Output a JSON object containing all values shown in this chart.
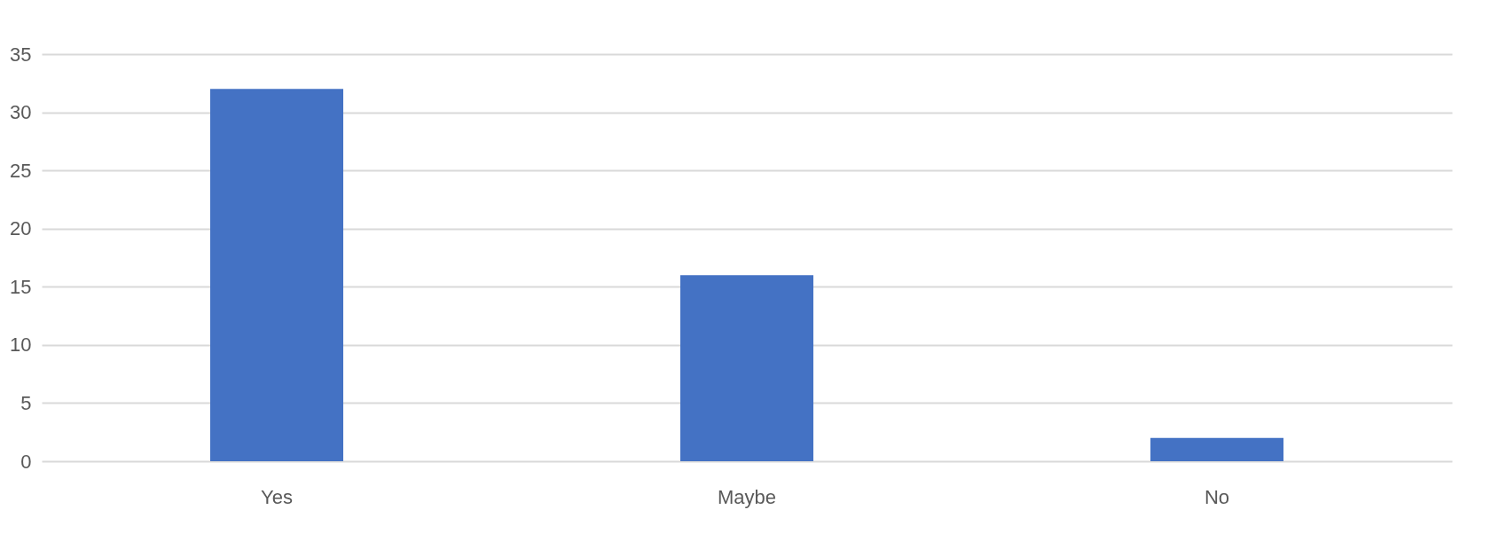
{
  "chart_data": {
    "type": "bar",
    "categories": [
      "Yes",
      "Maybe",
      "No"
    ],
    "values": [
      32,
      16,
      2
    ],
    "color": "#4472c4",
    "ylim": [
      0,
      35
    ],
    "yticks": [
      0,
      5,
      10,
      15,
      20,
      25,
      30,
      35
    ],
    "grid": "y"
  }
}
